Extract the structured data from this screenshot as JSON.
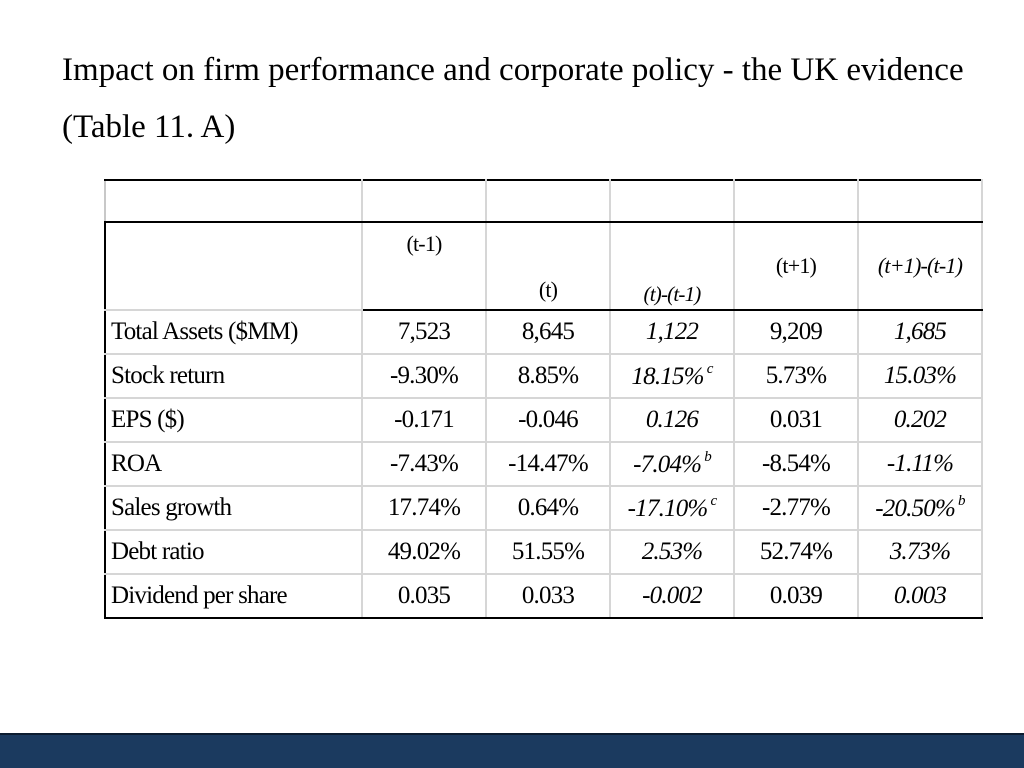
{
  "title": "Impact on firm performance and corporate policy - the UK evidence (Table 11. A)",
  "table": {
    "headers": [
      "(t-1)",
      "(t)",
      "(t)-(t-1)",
      "(t+1)",
      "(t+1)-(t-1)"
    ],
    "rows": [
      {
        "label": "Total Assets ($MM)",
        "cells": [
          "7,523",
          "8,645",
          "1,122",
          "9,209",
          "1,685"
        ],
        "notes": [
          "",
          "",
          "",
          "",
          ""
        ]
      },
      {
        "label": "Stock return",
        "cells": [
          "-9.30%",
          "8.85%",
          "18.15%",
          "5.73%",
          "15.03%"
        ],
        "notes": [
          "",
          "",
          "c",
          "",
          ""
        ]
      },
      {
        "label": "EPS ($)",
        "cells": [
          "-0.171",
          "-0.046",
          "0.126",
          "0.031",
          "0.202"
        ],
        "notes": [
          "",
          "",
          "",
          "",
          ""
        ]
      },
      {
        "label": "ROA",
        "cells": [
          "-7.43%",
          "-14.47%",
          "-7.04%",
          "-8.54%",
          "-1.11%"
        ],
        "notes": [
          "",
          "",
          "b",
          "",
          ""
        ]
      },
      {
        "label": "Sales growth",
        "cells": [
          "17.74%",
          "0.64%",
          "-17.10%",
          "-2.77%",
          "-20.50%"
        ],
        "notes": [
          "",
          "",
          "c",
          "",
          "b"
        ]
      },
      {
        "label": "Debt ratio",
        "cells": [
          "49.02%",
          "51.55%",
          "2.53%",
          "52.74%",
          "3.73%"
        ],
        "notes": [
          "",
          "",
          "",
          "",
          ""
        ]
      },
      {
        "label": "Dividend per share",
        "cells": [
          "0.035",
          "0.033",
          "-0.002",
          "0.039",
          "0.003"
        ],
        "notes": [
          "",
          "",
          "",
          "",
          ""
        ]
      }
    ]
  },
  "colors": {
    "bottom_bar": "#1b3a5f",
    "grid": "#d6d6d6",
    "rule": "#000000"
  }
}
